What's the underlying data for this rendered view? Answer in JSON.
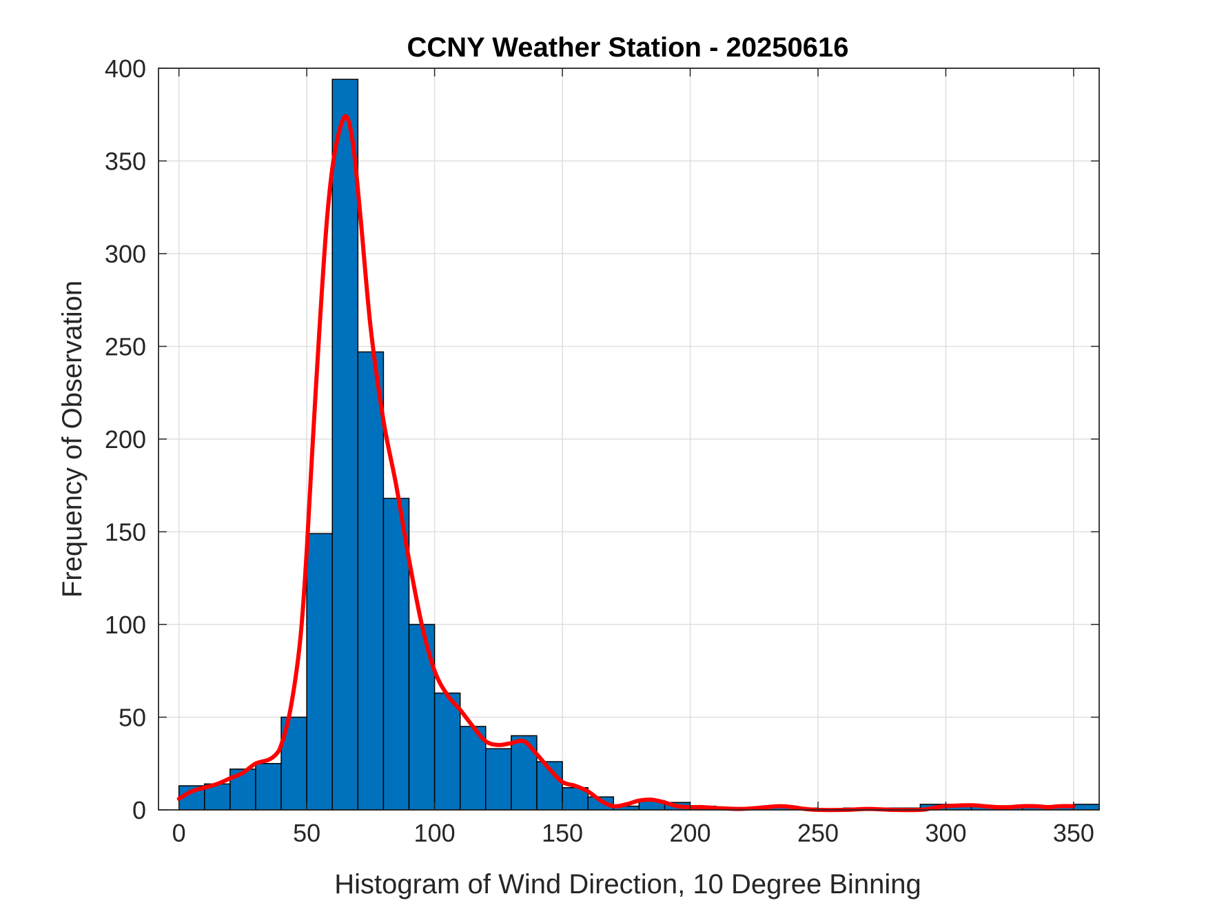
{
  "chart_data": {
    "type": "bar",
    "title": "CCNY Weather Station - 20250616",
    "xlabel": "Histogram of Wind Direction, 10 Degree Binning",
    "ylabel": "Frequency of Observation",
    "xlim": [
      -8,
      360
    ],
    "ylim": [
      0,
      400
    ],
    "xticks": [
      0,
      50,
      100,
      150,
      200,
      250,
      300,
      350
    ],
    "yticks": [
      0,
      50,
      100,
      150,
      200,
      250,
      300,
      350,
      400
    ],
    "grid": true,
    "bin_width": 10,
    "bins": [
      {
        "start": 0,
        "value": 13
      },
      {
        "start": 10,
        "value": 14
      },
      {
        "start": 20,
        "value": 22
      },
      {
        "start": 30,
        "value": 25
      },
      {
        "start": 40,
        "value": 50
      },
      {
        "start": 50,
        "value": 149
      },
      {
        "start": 60,
        "value": 394
      },
      {
        "start": 70,
        "value": 247
      },
      {
        "start": 80,
        "value": 168
      },
      {
        "start": 90,
        "value": 100
      },
      {
        "start": 100,
        "value": 63
      },
      {
        "start": 110,
        "value": 45
      },
      {
        "start": 120,
        "value": 33
      },
      {
        "start": 130,
        "value": 40
      },
      {
        "start": 140,
        "value": 26
      },
      {
        "start": 150,
        "value": 12
      },
      {
        "start": 160,
        "value": 7
      },
      {
        "start": 170,
        "value": 2
      },
      {
        "start": 180,
        "value": 5
      },
      {
        "start": 190,
        "value": 4
      },
      {
        "start": 200,
        "value": 2
      },
      {
        "start": 210,
        "value": 1
      },
      {
        "start": 220,
        "value": 1
      },
      {
        "start": 230,
        "value": 2
      },
      {
        "start": 240,
        "value": 1
      },
      {
        "start": 250,
        "value": 0
      },
      {
        "start": 260,
        "value": 1
      },
      {
        "start": 270,
        "value": 1
      },
      {
        "start": 280,
        "value": 1
      },
      {
        "start": 290,
        "value": 3
      },
      {
        "start": 300,
        "value": 3
      },
      {
        "start": 310,
        "value": 2
      },
      {
        "start": 320,
        "value": 2
      },
      {
        "start": 330,
        "value": 2
      },
      {
        "start": 340,
        "value": 2
      },
      {
        "start": 350,
        "value": 3
      }
    ],
    "bar_color": "#0072BD",
    "curve_color": "#FF0000",
    "curve": [
      [
        0,
        6
      ],
      [
        5,
        10
      ],
      [
        10,
        12
      ],
      [
        15,
        14
      ],
      [
        20,
        17
      ],
      [
        25,
        20
      ],
      [
        30,
        25
      ],
      [
        35,
        27
      ],
      [
        38,
        30
      ],
      [
        40,
        35
      ],
      [
        43,
        50
      ],
      [
        46,
        75
      ],
      [
        48,
        100
      ],
      [
        50,
        140
      ],
      [
        52,
        190
      ],
      [
        55,
        260
      ],
      [
        58,
        320
      ],
      [
        61,
        355
      ],
      [
        65,
        374
      ],
      [
        68,
        360
      ],
      [
        71,
        320
      ],
      [
        75,
        260
      ],
      [
        80,
        210
      ],
      [
        85,
        175
      ],
      [
        90,
        135
      ],
      [
        95,
        100
      ],
      [
        100,
        75
      ],
      [
        105,
        62
      ],
      [
        110,
        54
      ],
      [
        115,
        45
      ],
      [
        120,
        37
      ],
      [
        125,
        35
      ],
      [
        130,
        36
      ],
      [
        135,
        37
      ],
      [
        140,
        30
      ],
      [
        145,
        22
      ],
      [
        150,
        15
      ],
      [
        155,
        13
      ],
      [
        160,
        10
      ],
      [
        165,
        5
      ],
      [
        170,
        2
      ],
      [
        175,
        3
      ],
      [
        180,
        5
      ],
      [
        185,
        5.5
      ],
      [
        190,
        4
      ],
      [
        195,
        2
      ],
      [
        200,
        1.5
      ],
      [
        205,
        1.5
      ],
      [
        210,
        1
      ],
      [
        220,
        0.5
      ],
      [
        230,
        1.5
      ],
      [
        235,
        2
      ],
      [
        240,
        1.5
      ],
      [
        245,
        0.5
      ],
      [
        250,
        0
      ],
      [
        260,
        0
      ],
      [
        270,
        0.5
      ],
      [
        280,
        0
      ],
      [
        290,
        0
      ],
      [
        295,
        1
      ],
      [
        300,
        2
      ],
      [
        310,
        2.5
      ],
      [
        315,
        2
      ],
      [
        320,
        1.5
      ],
      [
        325,
        1.5
      ],
      [
        330,
        2
      ],
      [
        335,
        2
      ],
      [
        340,
        1.5
      ],
      [
        345,
        2
      ],
      [
        350,
        2
      ]
    ]
  }
}
